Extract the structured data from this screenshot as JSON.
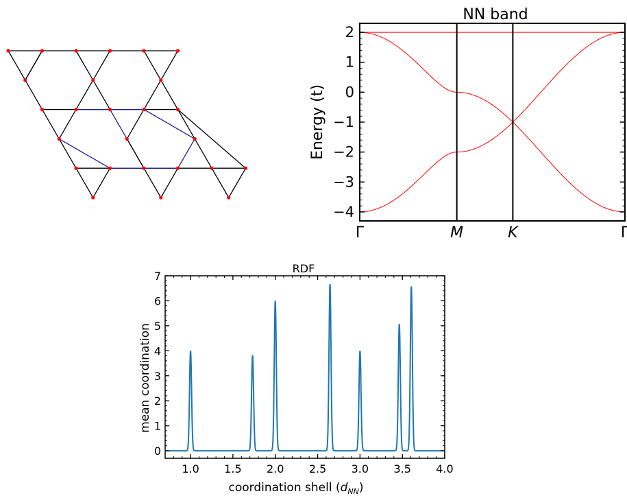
{
  "chart_data": [
    {
      "type": "diagram",
      "description_label": "",
      "lattice": "kagome",
      "rows": [
        {
          "points": 6
        },
        {
          "points": 3
        },
        {
          "points": 5
        },
        {
          "points": 3
        },
        {
          "points": 6
        },
        {
          "points": 3
        }
      ],
      "colors": {
        "bond": "#000000",
        "highlight_bond": "#1f1f8f",
        "site": "#ff0000"
      }
    },
    {
      "type": "line",
      "title": "NN band",
      "ylabel": "Energy (t)",
      "xlabel": "",
      "ylim": [
        -4.3,
        2.3
      ],
      "yticks": [
        "2",
        "1",
        "0",
        "−1",
        "−2",
        "−3",
        "−4"
      ],
      "kpoints": [
        {
          "label": "Γ",
          "italic": false
        },
        {
          "label": "M",
          "italic": true
        },
        {
          "label": "K",
          "italic": true
        },
        {
          "label": "Γ",
          "italic": false
        }
      ],
      "kpoint_positions": [
        0,
        1,
        1.577,
        2.732
      ],
      "series": [
        {
          "values_at_kpoints": [
            2,
            2,
            2,
            2
          ]
        },
        {
          "values_at_kpoints": [
            2,
            0,
            -1,
            2
          ]
        },
        {
          "values_at_kpoints": [
            -4,
            -2,
            -1,
            -4
          ]
        }
      ],
      "color": "#ff0000"
    },
    {
      "type": "line",
      "title": "RDF",
      "xlabel": "coordination shell (d_NN)",
      "xlabel_main": "coordination shell (",
      "xlabel_var": "d",
      "xlabel_sub": "NN",
      "xlabel_close": ")",
      "ylabel": "mean coordination",
      "xlim": [
        0.7,
        4.0
      ],
      "ylim": [
        -0.3,
        7.0
      ],
      "xticks": [
        "1.0",
        "1.5",
        "2.0",
        "2.5",
        "3.0",
        "3.5",
        "4.0"
      ],
      "yticks": [
        "0",
        "1",
        "2",
        "3",
        "4",
        "5",
        "6",
        "7"
      ],
      "peaks": [
        {
          "x": 1.0,
          "y": 4.0
        },
        {
          "x": 1.732,
          "y": 3.82
        },
        {
          "x": 2.0,
          "y": 6.0
        },
        {
          "x": 2.646,
          "y": 6.67
        },
        {
          "x": 3.0,
          "y": 4.0
        },
        {
          "x": 3.464,
          "y": 5.07
        },
        {
          "x": 3.606,
          "y": 6.58
        }
      ],
      "color": "#1f77b4"
    }
  ]
}
